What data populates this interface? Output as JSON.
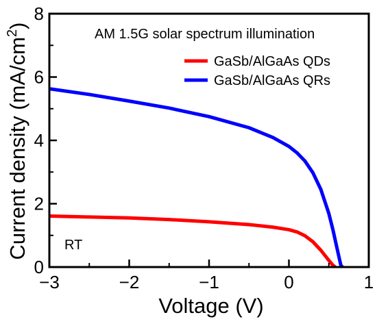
{
  "chart_data": {
    "type": "line",
    "annotation": "AM 1.5G solar spectrum illumination",
    "corner_label": "RT",
    "xlabel": "Voltage (V)",
    "ylabel_main": "Current density (mA/cm",
    "ylabel_sup": "2",
    "ylabel_close": ")",
    "xlim": [
      -3,
      1
    ],
    "ylim": [
      0,
      8
    ],
    "xticks": [
      -3,
      -2,
      -1,
      0,
      1
    ],
    "xtick_labels": [
      "−3",
      "−2",
      "−1",
      "0",
      "1"
    ],
    "yticks": [
      0,
      2,
      4,
      6,
      8
    ],
    "ytick_labels": [
      "0",
      "2",
      "4",
      "6",
      "8"
    ],
    "legend_position": "top-right",
    "series": [
      {
        "name": "GaSb/AlGaAs QDs",
        "color": "#ff0000",
        "x": [
          -3.0,
          -2.5,
          -2.0,
          -1.5,
          -1.0,
          -0.5,
          -0.2,
          0.0,
          0.1,
          0.2,
          0.3,
          0.4,
          0.45,
          0.5,
          0.55,
          0.58
        ],
        "y": [
          1.61,
          1.58,
          1.55,
          1.5,
          1.43,
          1.34,
          1.26,
          1.18,
          1.11,
          0.99,
          0.8,
          0.53,
          0.37,
          0.21,
          0.06,
          0.0
        ]
      },
      {
        "name": "GaSb/AlGaAs QRs",
        "color": "#0000ff",
        "x": [
          -3.0,
          -2.5,
          -2.0,
          -1.5,
          -1.0,
          -0.5,
          -0.2,
          0.0,
          0.1,
          0.2,
          0.3,
          0.4,
          0.5,
          0.55,
          0.6,
          0.65,
          0.67
        ],
        "y": [
          5.63,
          5.45,
          5.24,
          5.02,
          4.75,
          4.4,
          4.09,
          3.81,
          3.61,
          3.35,
          2.98,
          2.45,
          1.69,
          1.19,
          0.62,
          0.06,
          0.0
        ]
      }
    ]
  }
}
